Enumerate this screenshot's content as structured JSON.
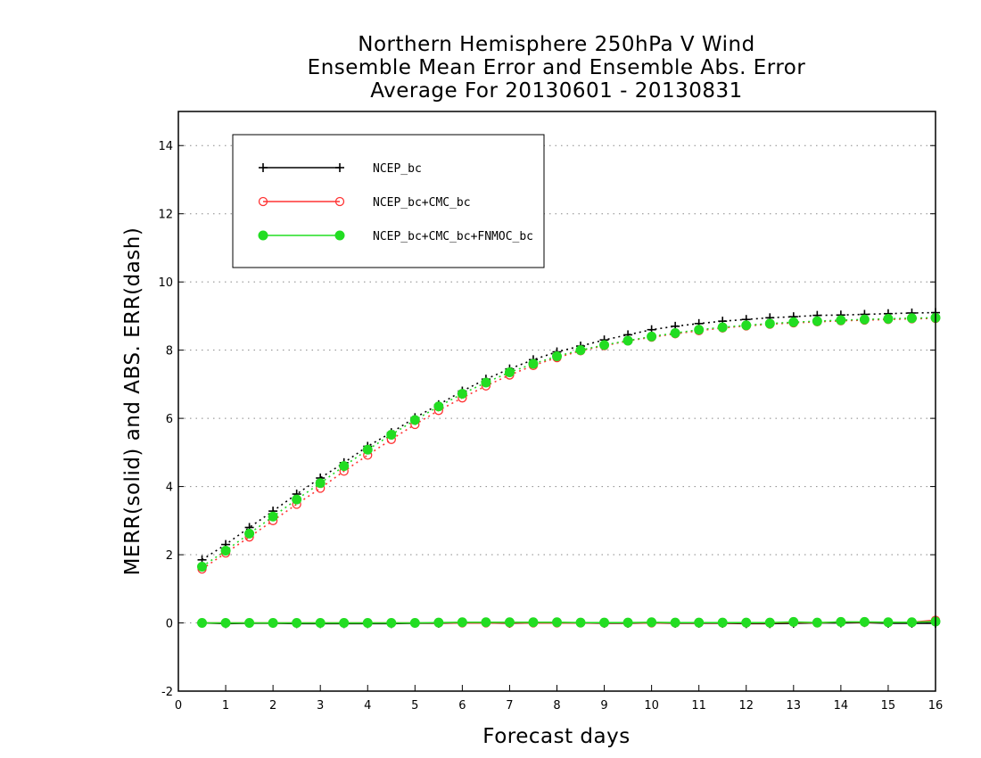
{
  "chart_data": {
    "type": "line",
    "title_lines": [
      "Northern Hemisphere 250hPa V Wind",
      "Ensemble Mean Error and Ensemble Abs. Error",
      "Average For 20130601 - 20130831"
    ],
    "xlabel": "Forecast days",
    "ylabel": "MERR(solid) and ABS. ERR(dash)",
    "xlim": [
      0,
      16
    ],
    "ylim": [
      -2,
      15
    ],
    "x_ticks": [
      "0",
      "1",
      "2",
      "3",
      "4",
      "5",
      "6",
      "7",
      "8",
      "9",
      "10",
      "11",
      "12",
      "13",
      "14",
      "15",
      "16"
    ],
    "y_ticks": [
      "-2",
      "0",
      "2",
      "4",
      "6",
      "8",
      "10",
      "12",
      "14"
    ],
    "grid": "horizontal-dotted",
    "legend_position": "top-left",
    "x": [
      0.5,
      1,
      1.5,
      2,
      2.5,
      3,
      3.5,
      4,
      4.5,
      5,
      5.5,
      6,
      6.5,
      7,
      7.5,
      8,
      8.5,
      9,
      9.5,
      10,
      10.5,
      11,
      11.5,
      12,
      12.5,
      13,
      13.5,
      14,
      14.5,
      15,
      15.5,
      16
    ],
    "series": [
      {
        "name": "NCEP_bc",
        "color": "#000000",
        "marker": "plus",
        "abs_err": [
          1.85,
          2.3,
          2.8,
          3.28,
          3.78,
          4.25,
          4.7,
          5.18,
          5.58,
          6.02,
          6.4,
          6.8,
          7.15,
          7.45,
          7.72,
          7.95,
          8.12,
          8.3,
          8.45,
          8.6,
          8.7,
          8.78,
          8.85,
          8.9,
          8.95,
          8.98,
          9.02,
          9.03,
          9.05,
          9.07,
          9.09,
          9.1
        ],
        "mean_err": [
          0.0,
          -0.02,
          -0.01,
          -0.01,
          -0.02,
          -0.02,
          -0.02,
          -0.02,
          -0.02,
          -0.01,
          -0.01,
          0.0,
          0.0,
          -0.01,
          0.0,
          0.0,
          0.0,
          -0.01,
          -0.01,
          0.0,
          -0.01,
          -0.01,
          -0.01,
          -0.02,
          -0.02,
          -0.01,
          0.0,
          0.0,
          0.01,
          -0.01,
          -0.01,
          -0.01
        ]
      },
      {
        "name": "NCEP_bc+CMC_bc",
        "color": "#ff3333",
        "marker": "circle-open",
        "abs_err": [
          1.58,
          2.05,
          2.52,
          3.0,
          3.48,
          3.95,
          4.45,
          4.92,
          5.38,
          5.82,
          6.23,
          6.6,
          6.95,
          7.27,
          7.55,
          7.78,
          7.98,
          8.13,
          8.27,
          8.38,
          8.48,
          8.57,
          8.65,
          8.71,
          8.76,
          8.8,
          8.83,
          8.86,
          8.88,
          8.9,
          8.92,
          8.93
        ],
        "mean_err": [
          0.0,
          0.0,
          0.0,
          0.0,
          0.0,
          0.0,
          0.0,
          0.0,
          0.0,
          0.0,
          0.0,
          0.0,
          0.0,
          0.0,
          0.0,
          0.0,
          0.0,
          0.0,
          0.0,
          0.0,
          0.0,
          0.0,
          0.0,
          0.0,
          0.0,
          0.02,
          0.0,
          0.03,
          0.02,
          0.02,
          0.02,
          0.08
        ]
      },
      {
        "name": "NCEP_bc+CMC_bc+FNMOC_bc",
        "color": "#22dd22",
        "marker": "circle-filled",
        "abs_err": [
          1.65,
          2.12,
          2.62,
          3.12,
          3.62,
          4.1,
          4.6,
          5.08,
          5.52,
          5.95,
          6.35,
          6.72,
          7.05,
          7.35,
          7.6,
          7.82,
          8.0,
          8.15,
          8.28,
          8.4,
          8.5,
          8.6,
          8.67,
          8.73,
          8.78,
          8.82,
          8.85,
          8.88,
          8.9,
          8.92,
          8.94,
          8.95
        ],
        "mean_err": [
          0.0,
          0.0,
          0.0,
          0.0,
          0.0,
          0.0,
          0.0,
          0.0,
          0.0,
          0.0,
          0.01,
          0.02,
          0.02,
          0.02,
          0.02,
          0.02,
          0.01,
          0.01,
          0.01,
          0.02,
          0.01,
          0.01,
          0.01,
          0.01,
          0.01,
          0.03,
          0.01,
          0.03,
          0.03,
          0.02,
          0.02,
          0.04
        ]
      }
    ]
  }
}
